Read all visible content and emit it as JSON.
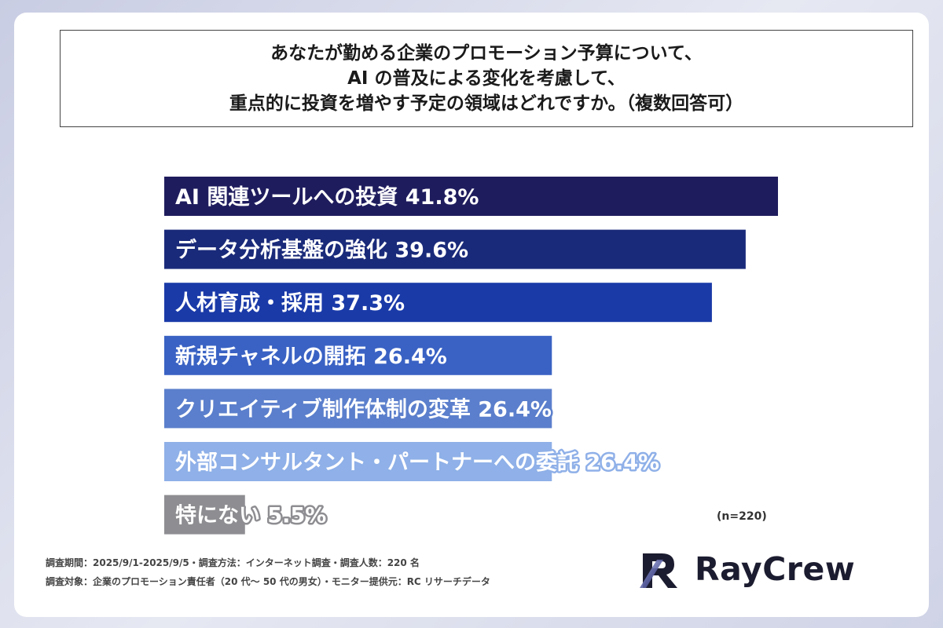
{
  "title": {
    "lines": [
      "あなたが勤める企業のプロモーション予算について、",
      "AI の普及による変化を考慮して、",
      "重点的に投資を増やす予定の領域はどれですか。（複数回答可）"
    ]
  },
  "chart_data": {
    "type": "bar",
    "orientation": "horizontal",
    "categories": [
      "AI 関連ツールへの投資",
      "データ分析基盤の強化",
      "人材育成・採用",
      "新規チャネルの開拓",
      "クリエイティブ制作体制の変革",
      "外部コンサルタント・パートナーへの委託",
      "特にない"
    ],
    "values": [
      41.8,
      39.6,
      37.3,
      26.4,
      26.4,
      26.4,
      5.5
    ],
    "value_labels": [
      "41.8%",
      "39.6%",
      "37.3%",
      "26.4%",
      "26.4%",
      "26.4%",
      "5.5%"
    ],
    "colors": [
      "#1f1c5e",
      "#1a2a7a",
      "#1a3aa8",
      "#3a62c4",
      "#5b7fcc",
      "#8fb0e8",
      "#8e8e92"
    ],
    "label_outline": [
      false,
      false,
      false,
      false,
      true,
      true,
      true
    ],
    "unit": "%",
    "xlim": [
      0,
      41.8
    ]
  },
  "sample": "(n=220)",
  "footer": {
    "line1": "調査期間：2025/9/1-2025/9/5・調査方法：インターネット調査・調査人数：220 名",
    "line2": "調査対象：企業のプロモーション責任者（20 代～ 50 代の男女）・モニター提供元：RC リサーチデータ"
  },
  "logo": {
    "text": "RayCrew",
    "icon": "raycrew-logo-icon"
  }
}
